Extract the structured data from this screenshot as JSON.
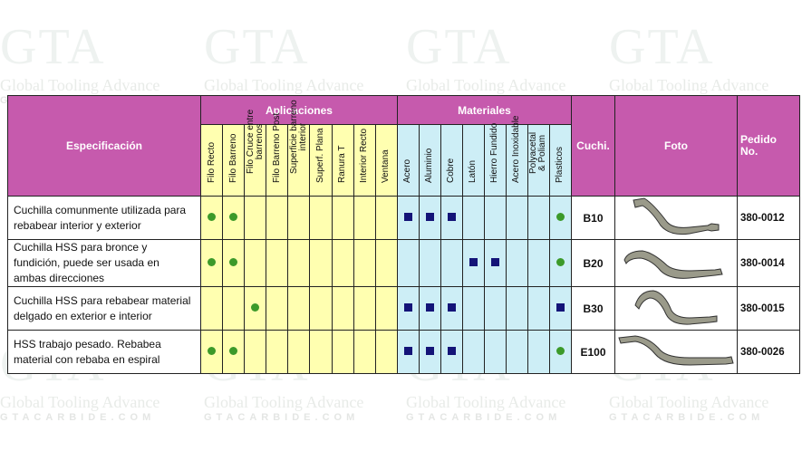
{
  "watermark": {
    "brand": "GTA",
    "name": "Global Tooling Advance",
    "site": "GTACARBIDE.COM"
  },
  "header": {
    "specificacion": "Especificación",
    "aplicaciones": "Aplicaciones",
    "materiales": "Materiales",
    "cuchi": "Cuchi.",
    "foto": "Foto",
    "pedido": "Pedido\nNo.",
    "app_cols": [
      "Filo Recto",
      "Filo Barreno",
      "Filo Cruce entre\nbarrenos",
      "Filo Barreno Post",
      "Superficie barreno\ninterior",
      "Superf. Plana",
      "Ranura T",
      "Interior Recto",
      "Ventana"
    ],
    "mat_cols": [
      "Acero",
      "Aluminio",
      "Cobre",
      "Latón",
      "Hierro Fundido",
      "Acero Inoxidable",
      "Polyacetal\n& Poliam",
      "Plasticos"
    ]
  },
  "colors": {
    "header": "#c65aad",
    "aplicaciones_bg": "#ffffb0",
    "materiales_bg": "#cdeef6",
    "circle": "#3c9a2a",
    "square": "#141478"
  },
  "rows": [
    {
      "spec": "Cuchilla comunmente utilizada para rebabear interior y exterior",
      "apps": [
        "circle",
        "circle",
        "",
        "",
        "",
        "",
        "",
        "",
        ""
      ],
      "mats": [
        "square",
        "square",
        "square",
        "",
        "",
        "",
        "",
        "circle"
      ],
      "cuchi": "B10",
      "pedido": "380-0012",
      "photo": "blade-b10"
    },
    {
      "spec": "Cuchilla HSS para bronce y fundición, puede ser usada en ambas direcciones",
      "apps": [
        "circle",
        "circle",
        "",
        "",
        "",
        "",
        "",
        "",
        ""
      ],
      "mats": [
        "",
        "",
        "",
        "square",
        "square",
        "",
        "",
        "circle"
      ],
      "cuchi": "B20",
      "pedido": "380-0014",
      "photo": "blade-b20"
    },
    {
      "spec": "Cuchilla HSS para rebabear material delgado en exterior e interior",
      "apps": [
        "",
        "",
        "circle",
        "",
        "",
        "",
        "",
        "",
        ""
      ],
      "mats": [
        "square",
        "square",
        "square",
        "",
        "",
        "",
        "",
        "square"
      ],
      "cuchi": "B30",
      "pedido": "380-0015",
      "photo": "blade-b30"
    },
    {
      "spec": "HSS trabajo pesado. Rebabea material con rebaba en espiral",
      "apps": [
        "circle",
        "circle",
        "",
        "",
        "",
        "",
        "",
        "",
        ""
      ],
      "mats": [
        "square",
        "square",
        "square",
        "",
        "",
        "",
        "",
        "circle"
      ],
      "cuchi": "E100",
      "pedido": "380-0026",
      "photo": "blade-e100"
    }
  ]
}
